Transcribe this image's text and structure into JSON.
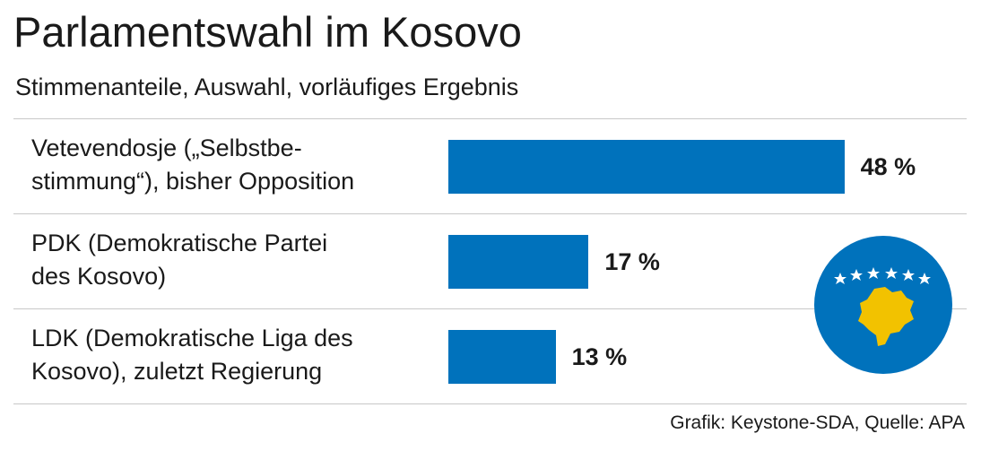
{
  "chart_data": {
    "type": "bar",
    "orientation": "horizontal",
    "title": "Parlamentswahl im Kosovo",
    "subtitle": "Stimmenanteile, Auswahl, vorläufiges Ergebnis",
    "categories": [
      "Vetevendosje („Selbstbe-\nstimmung“), bisher Opposition",
      "PDK (Demokratische Partei\ndes Kosovo)",
      "LDK (Demokratische Liga des\nKosovo), zuletzt Regierung"
    ],
    "values": [
      48,
      17,
      13
    ],
    "value_labels": [
      "48 %",
      "17 %",
      "13 %"
    ],
    "color": "#0072bc",
    "source": "Grafik: Keystone-SDA, Quelle: APA"
  }
}
